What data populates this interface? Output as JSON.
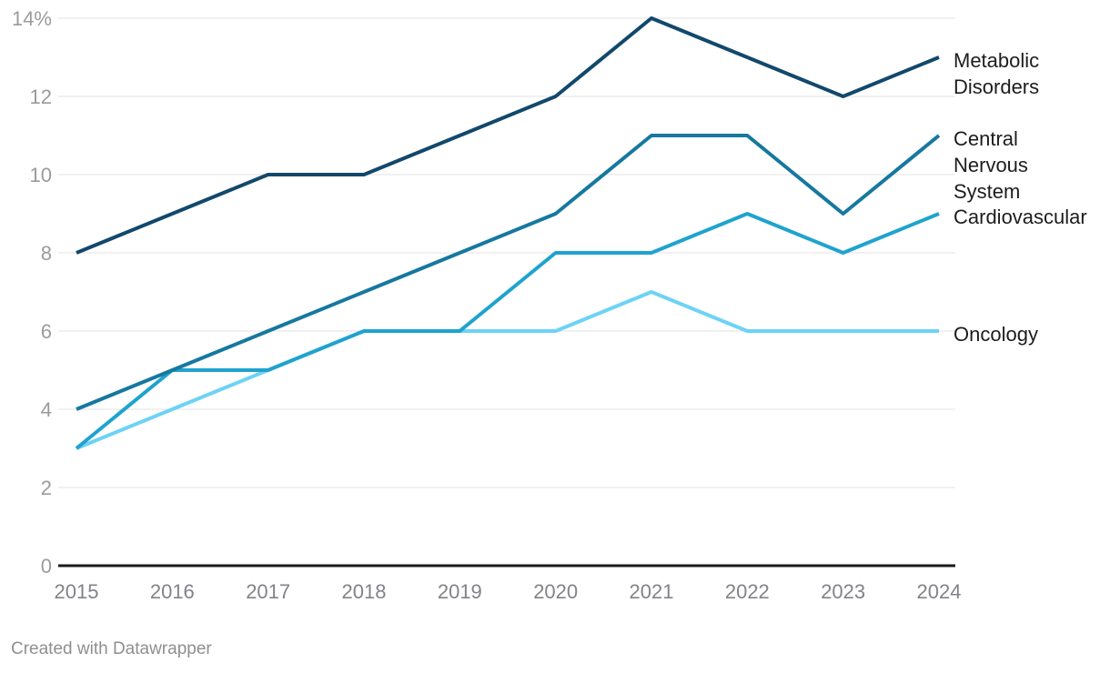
{
  "chart_data": {
    "type": "line",
    "title": "",
    "xlabel": "",
    "ylabel": "",
    "x": [
      2015,
      2016,
      2017,
      2018,
      2019,
      2020,
      2021,
      2022,
      2023,
      2024
    ],
    "series": [
      {
        "name": "Metabolic Disorders",
        "label_lines": [
          "Metabolic",
          "Disorders"
        ],
        "color": "#12486B",
        "values": [
          8,
          9,
          10,
          10,
          11,
          12,
          14,
          13,
          12,
          13
        ]
      },
      {
        "name": "Central Nervous System",
        "label_lines": [
          "Central",
          "Nervous",
          "System"
        ],
        "color": "#16789F",
        "values": [
          4,
          5,
          6,
          7,
          8,
          9,
          11,
          11,
          9,
          11
        ]
      },
      {
        "name": "Cardiovascular",
        "label_lines": [
          "Cardiovascular"
        ],
        "color": "#1FA3CE",
        "values": [
          3,
          5,
          5,
          6,
          6,
          8,
          8,
          9,
          8,
          9
        ]
      },
      {
        "name": "Oncology",
        "label_lines": [
          "Oncology"
        ],
        "color": "#6DD3F5",
        "values": [
          3,
          4,
          5,
          6,
          6,
          6,
          7,
          6,
          6,
          6
        ]
      }
    ],
    "ylim": [
      0,
      14
    ],
    "yticks": [
      {
        "v": 0,
        "label": "0"
      },
      {
        "v": 2,
        "label": "2"
      },
      {
        "v": 4,
        "label": "4"
      },
      {
        "v": 6,
        "label": "6"
      },
      {
        "v": 8,
        "label": "8"
      },
      {
        "v": 10,
        "label": "10"
      },
      {
        "v": 12,
        "label": "12"
      },
      {
        "v": 14,
        "label": "14%"
      }
    ],
    "grid": true,
    "legend_position": "right-of-line-ends"
  },
  "footer": {
    "credit": "Created with Datawrapper"
  }
}
